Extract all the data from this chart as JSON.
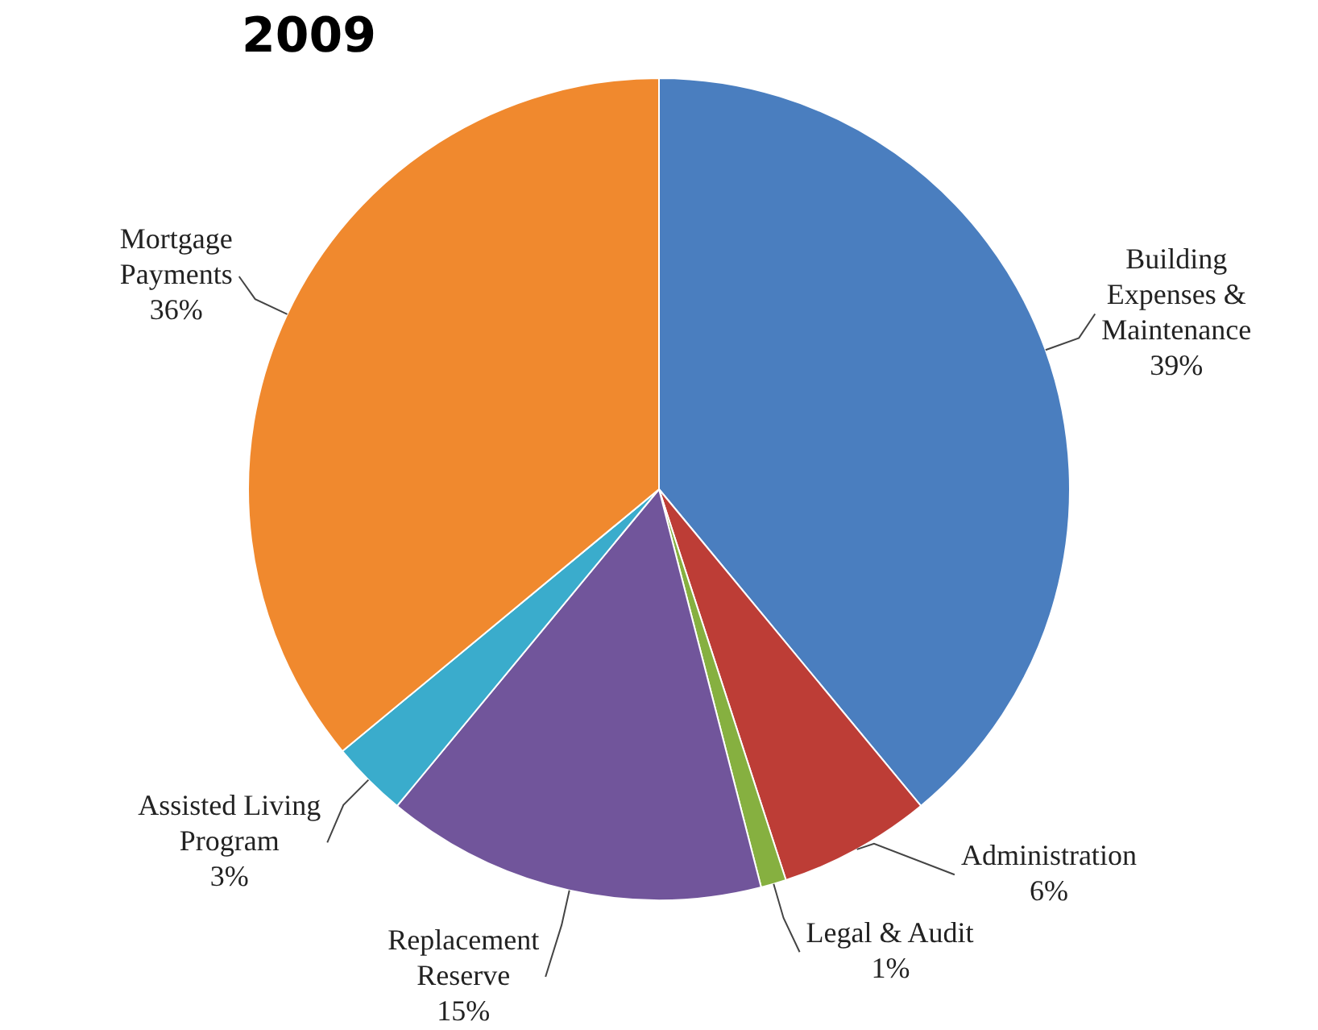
{
  "chart_data": {
    "type": "pie",
    "title": "2009",
    "categories": [
      "Building Expenses & Maintenance",
      "Administration",
      "Legal & Audit",
      "Replacement Reserve",
      "Assisted Living Program",
      "Mortgage Payments"
    ],
    "values": [
      39,
      6,
      1,
      15,
      3,
      36
    ],
    "colors": [
      "#4a7ebf",
      "#bd3d36",
      "#86b040",
      "#71559b",
      "#3aaccc",
      "#f0892e"
    ],
    "value_labels": [
      "39%",
      "6%",
      "1%",
      "15%",
      "3%",
      "36%"
    ],
    "legend": false
  }
}
